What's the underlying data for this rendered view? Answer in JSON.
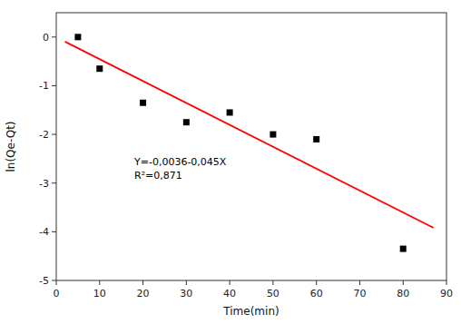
{
  "chart_data": {
    "type": "scatter",
    "xlabel": "Time(min)",
    "ylabel": "ln(Qe-Qt)",
    "series": [
      {
        "type": "scatter",
        "color": "black",
        "marker": "square",
        "x": [
          5,
          10,
          20,
          30,
          40,
          50,
          60,
          80
        ],
        "values": [
          0.0,
          -0.65,
          -1.35,
          -1.75,
          -1.55,
          -2.0,
          -2.1,
          -4.35
        ]
      },
      {
        "type": "line",
        "color": "#ff0000",
        "line_style": "solid",
        "x": [
          2,
          87
        ],
        "values": [
          -0.0936,
          -3.9186
        ]
      }
    ],
    "annotations": [
      "Y=-0,0036-0,045X",
      "R²=0,871"
    ],
    "xlim": [
      0,
      90
    ],
    "ylim": [
      -5,
      0.5
    ],
    "xticks": [
      0,
      10,
      20,
      30,
      40,
      50,
      60,
      70,
      80,
      90
    ],
    "yticks": [
      0,
      -1,
      -2,
      -3,
      -4,
      -5
    ],
    "grid": false
  }
}
